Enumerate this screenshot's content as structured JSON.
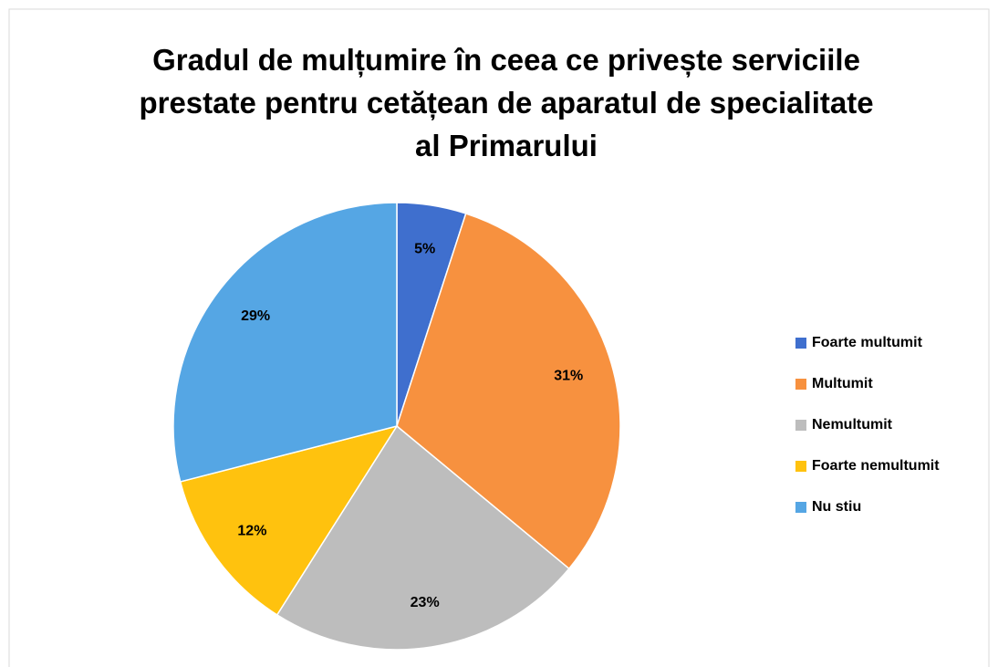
{
  "chart_data": {
    "type": "pie",
    "title": "Gradul de mulțumire în ceea ce privește serviciile prestate pentru cetățean de aparatul de specialitate al Primarului",
    "categories": [
      "Foarte multumit",
      "Multumit",
      "Nemultumit",
      "Foarte nemultumit",
      "Nu stiu"
    ],
    "values": [
      5,
      31,
      23,
      12,
      29
    ],
    "value_labels": [
      "5%",
      "31%",
      "23%",
      "12%",
      "29%"
    ],
    "colors": [
      "#3f6fce",
      "#f7913f",
      "#bdbdbd",
      "#ffc20e",
      "#55a6e4"
    ],
    "legend": "right"
  }
}
